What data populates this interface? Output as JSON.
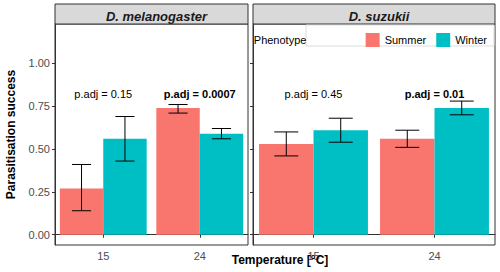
{
  "chart_data": [
    {
      "type": "bar",
      "title": "D. melanogaster",
      "xlabel": "Temperature [°C]",
      "ylabel": "Parasitisation success",
      "categories": [
        "15",
        "24"
      ],
      "series": [
        {
          "name": "Summer",
          "color": "#F8766D",
          "values": [
            0.27,
            0.74
          ],
          "lower": [
            0.14,
            0.71
          ],
          "upper": [
            0.41,
            0.76
          ]
        },
        {
          "name": "Winter",
          "color": "#00BFC4",
          "values": [
            0.56,
            0.59
          ],
          "lower": [
            0.43,
            0.56
          ],
          "upper": [
            0.69,
            0.62
          ]
        }
      ],
      "annotations": [
        {
          "text": "p.adj = 0.15",
          "x": "15",
          "y": 0.82,
          "bold": false
        },
        {
          "text": "p.adj = 0.0007",
          "x": "24",
          "y": 0.82,
          "bold": true
        }
      ],
      "ylim": [
        -0.06,
        1.23
      ],
      "yticks": [
        {
          "value": 0,
          "label": "0.00"
        },
        {
          "value": 0.25,
          "label": "0.25"
        },
        {
          "value": 0.5,
          "label": "0.50"
        },
        {
          "value": 0.75,
          "label": "0.75"
        },
        {
          "value": 1,
          "label": "1.00"
        }
      ],
      "grid": false
    },
    {
      "type": "bar",
      "title": "D. suzukii",
      "categories": [
        "15",
        "24"
      ],
      "series": [
        {
          "name": "Summer",
          "color": "#F8766D",
          "values": [
            0.53,
            0.56
          ],
          "lower": [
            0.46,
            0.51
          ],
          "upper": [
            0.6,
            0.61
          ]
        },
        {
          "name": "Winter",
          "color": "#00BFC4",
          "values": [
            0.61,
            0.74
          ],
          "lower": [
            0.54,
            0.7
          ],
          "upper": [
            0.68,
            0.78
          ]
        }
      ],
      "annotations": [
        {
          "text": "p.adj = 0.45",
          "x": "15",
          "y": 0.82,
          "bold": false
        },
        {
          "text": "p.adj = 0.01",
          "x": "24",
          "y": 0.82,
          "bold": true
        }
      ],
      "ylim": [
        -0.06,
        1.23
      ],
      "yticks": [
        {
          "value": 0,
          "label": "0.00"
        },
        {
          "value": 0.25,
          "label": "0.25"
        },
        {
          "value": 0.5,
          "label": "0.50"
        },
        {
          "value": 0.75,
          "label": "0.75"
        },
        {
          "value": 1,
          "label": "1.00"
        }
      ],
      "tick_labels": "x",
      "legend": "upper right",
      "legend_title": "Phenotype",
      "grid": false
    }
  ]
}
